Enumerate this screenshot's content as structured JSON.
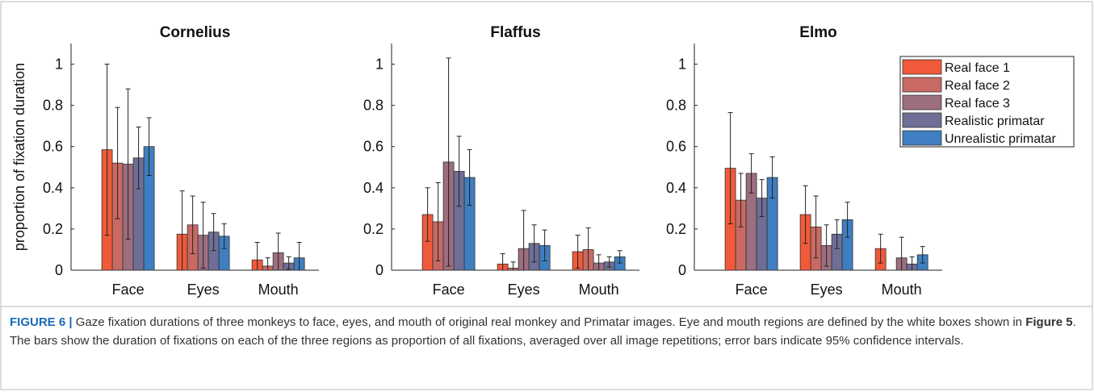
{
  "chart_data": [
    {
      "type": "bar",
      "title": "Cornelius",
      "ylabel": "proportion of fixation duration",
      "categories": [
        "Face",
        "Eyes",
        "Mouth"
      ],
      "ylim": [
        0,
        1.1
      ],
      "yticks": [
        0,
        0.2,
        0.4,
        0.6,
        0.8,
        1
      ],
      "series": [
        {
          "name": "Real face 1",
          "color": "#f05a3a",
          "values": [
            0.585,
            0.175,
            0.05
          ],
          "errors": [
            0.415,
            0.21,
            0.085
          ]
        },
        {
          "name": "Real face 2",
          "color": "#c86a63",
          "values": [
            0.52,
            0.22,
            0.02
          ],
          "errors": [
            0.27,
            0.14,
            0.04
          ]
        },
        {
          "name": "Real face 3",
          "color": "#9c6e80",
          "values": [
            0.515,
            0.17,
            0.085
          ],
          "errors": [
            0.365,
            0.16,
            0.095
          ]
        },
        {
          "name": "Realistic primatar",
          "color": "#6e6e96",
          "values": [
            0.545,
            0.185,
            0.035
          ],
          "errors": [
            0.15,
            0.09,
            0.03
          ]
        },
        {
          "name": "Unrealistic primatar",
          "color": "#3f7ec0",
          "values": [
            0.6,
            0.165,
            0.06
          ],
          "errors": [
            0.14,
            0.06,
            0.075
          ]
        }
      ]
    },
    {
      "type": "bar",
      "title": "Flaffus",
      "categories": [
        "Face",
        "Eyes",
        "Mouth"
      ],
      "ylim": [
        0,
        1.1
      ],
      "yticks": [
        0,
        0.2,
        0.4,
        0.6,
        0.8,
        1
      ],
      "series": [
        {
          "name": "Real face 1",
          "color": "#f05a3a",
          "values": [
            0.27,
            0.03,
            0.09
          ],
          "errors": [
            0.13,
            0.05,
            0.08
          ]
        },
        {
          "name": "Real face 2",
          "color": "#c86a63",
          "values": [
            0.235,
            0.01,
            0.1
          ],
          "errors": [
            0.19,
            0.03,
            0.105
          ]
        },
        {
          "name": "Real face 3",
          "color": "#9c6e80",
          "values": [
            0.525,
            0.105,
            0.035
          ],
          "errors": [
            0.505,
            0.185,
            0.04
          ]
        },
        {
          "name": "Realistic primatar",
          "color": "#6e6e96",
          "values": [
            0.48,
            0.13,
            0.04
          ],
          "errors": [
            0.17,
            0.09,
            0.025
          ]
        },
        {
          "name": "Unrealistic primatar",
          "color": "#3f7ec0",
          "values": [
            0.45,
            0.12,
            0.065
          ],
          "errors": [
            0.135,
            0.075,
            0.03
          ]
        }
      ]
    },
    {
      "type": "bar",
      "title": "Elmo",
      "legend": "upper right",
      "categories": [
        "Face",
        "Eyes",
        "Mouth"
      ],
      "ylim": [
        0,
        1.1
      ],
      "yticks": [
        0,
        0.2,
        0.4,
        0.6,
        0.8,
        1
      ],
      "series": [
        {
          "name": "Real face 1",
          "color": "#f05a3a",
          "values": [
            0.495,
            0.27,
            0.105
          ],
          "errors": [
            0.27,
            0.14,
            0.07
          ]
        },
        {
          "name": "Real face 2",
          "color": "#c86a63",
          "values": [
            0.34,
            0.21,
            null
          ],
          "errors": [
            0.13,
            0.15,
            null
          ]
        },
        {
          "name": "Real face 3",
          "color": "#9c6e80",
          "values": [
            0.47,
            0.12,
            0.06
          ],
          "errors": [
            0.095,
            0.1,
            0.1
          ]
        },
        {
          "name": "Realistic primatar",
          "color": "#6e6e96",
          "values": [
            0.35,
            0.175,
            0.03
          ],
          "errors": [
            0.09,
            0.07,
            0.035
          ]
        },
        {
          "name": "Unrealistic primatar",
          "color": "#3f7ec0",
          "values": [
            0.45,
            0.245,
            0.075
          ],
          "errors": [
            0.1,
            0.085,
            0.04
          ]
        }
      ]
    }
  ],
  "caption": {
    "label": "FIGURE 6 |",
    "text1": " Gaze fixation durations of three monkeys to face, eyes, and mouth of original real monkey and Primatar images. Eye and mouth regions are defined by the white boxes shown in ",
    "ref": "Figure 5",
    "text2": ". The bars show the duration of fixations on each of the three regions as proportion of all fixations, averaged over all image repetitions; error bars indicate 95% confidence intervals."
  }
}
